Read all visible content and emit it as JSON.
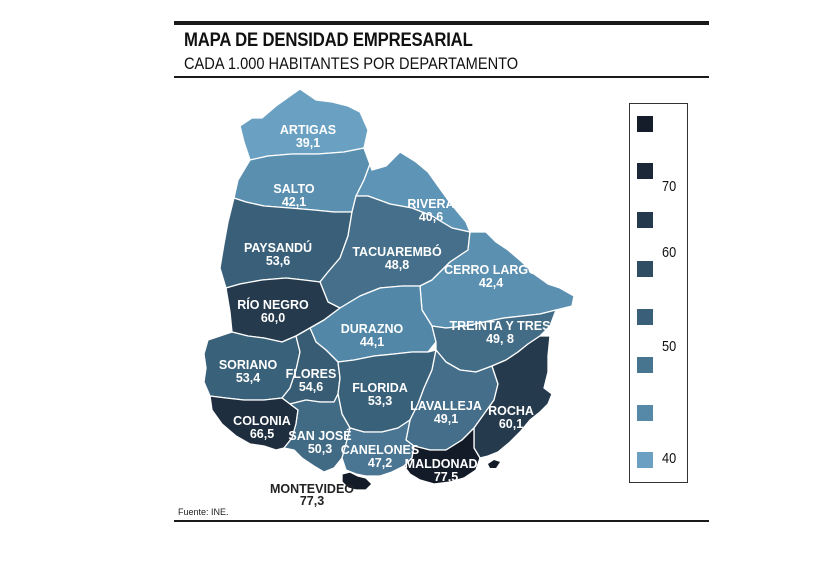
{
  "header": {
    "title": "MAPA DE DENSIDAD EMPRESARIAL",
    "subtitle": "CADA 1.000 HABITANTES POR DEPARTAMENTO"
  },
  "source": "Fuente: INE.",
  "legend": {
    "colors": [
      "#151d2a",
      "#1c2838",
      "#253a4c",
      "#2f4d63",
      "#3a6079",
      "#47748f",
      "#5688a7",
      "#6ba0c2"
    ],
    "ticks": {
      "t70": "70",
      "t60": "60",
      "t50": "50",
      "t40": "40"
    }
  },
  "departments": {
    "artigas": {
      "name": "ARTIGAS",
      "value": "39,1",
      "color": "#6aa1c3"
    },
    "salto": {
      "name": "SALTO",
      "value": "42,1",
      "color": "#5a8fb0"
    },
    "rivera": {
      "name": "RIVERA",
      "value": "40,6",
      "color": "#5e94b5"
    },
    "paysandu": {
      "name": "PAYSANDÚ",
      "value": "53,6",
      "color": "#3a6079"
    },
    "tacuarembo": {
      "name": "TACUAREMBÓ",
      "value": "48,8",
      "color": "#456f8a"
    },
    "cerro_largo": {
      "name": "CERRO LARGO",
      "value": "42,4",
      "color": "#5b90b1"
    },
    "rio_negro": {
      "name": "RÍO NEGRO",
      "value": "60,0",
      "color": "#253a4c"
    },
    "durazno": {
      "name": "DURAZNO",
      "value": "44,1",
      "color": "#5387a8"
    },
    "treinta_y_tres": {
      "name": "TREINTA Y TRES",
      "value": "49, 8",
      "color": "#436c87"
    },
    "soriano": {
      "name": "SORIANO",
      "value": "53,4",
      "color": "#3a617a"
    },
    "flores": {
      "name": "FLORES",
      "value": "54,6",
      "color": "#375c74"
    },
    "florida": {
      "name": "FLORIDA",
      "value": "53,3",
      "color": "#3a617a"
    },
    "lavalleja": {
      "name": "LAVALLEJA",
      "value": "49,1",
      "color": "#446e89"
    },
    "rocha": {
      "name": "ROCHA",
      "value": "60,1",
      "color": "#253a4c"
    },
    "colonia": {
      "name": "COLONIA",
      "value": "66,5",
      "color": "#1f2e3f"
    },
    "san_jose": {
      "name": "SAN JOSÉ",
      "value": "50,3",
      "color": "#416a84"
    },
    "canelones": {
      "name": "CANELONES",
      "value": "47,2",
      "color": "#4a7693"
    },
    "maldonado": {
      "name": "MALDONADO",
      "value": "77,5",
      "color": "#131b28"
    },
    "montevideo": {
      "name": "MONTEVIDEO",
      "value": "77,3",
      "color": "#131b28"
    }
  }
}
